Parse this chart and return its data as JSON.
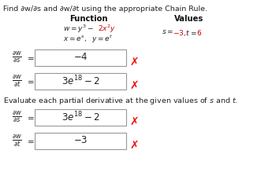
{
  "title_text": "Find ∂w/∂s and ∂w/∂t using the appropriate Chain Rule.",
  "col1_header": "Function",
  "col2_header": "Values",
  "function_line1_parts": [
    {
      "text": "$w = y^3 - $",
      "color": "#222222"
    },
    {
      "text": "$2x^2y$",
      "color": "#cc0000"
    },
    {
      "text": "",
      "color": "#222222"
    }
  ],
  "function_line1_plain": "$w = y^3 - 2x^2y$",
  "function_line2": "$x = e^s,\\ \\ y = e^t$",
  "values_s": "-3",
  "values_t": "6",
  "box_color": "white",
  "box_edge_color": "#999999",
  "x_color": "#ee1111",
  "text_color": "#222222",
  "bg_color": "#ffffff",
  "values_color": "#cc0000",
  "header_color": "#111111",
  "section1": [
    {
      "rhs": "$-4$"
    },
    {
      "rhs": "$3e^{18} - 2$"
    }
  ],
  "section2": [
    {
      "rhs": "$3e^{18} - 2$"
    },
    {
      "rhs": "$-3$"
    }
  ]
}
